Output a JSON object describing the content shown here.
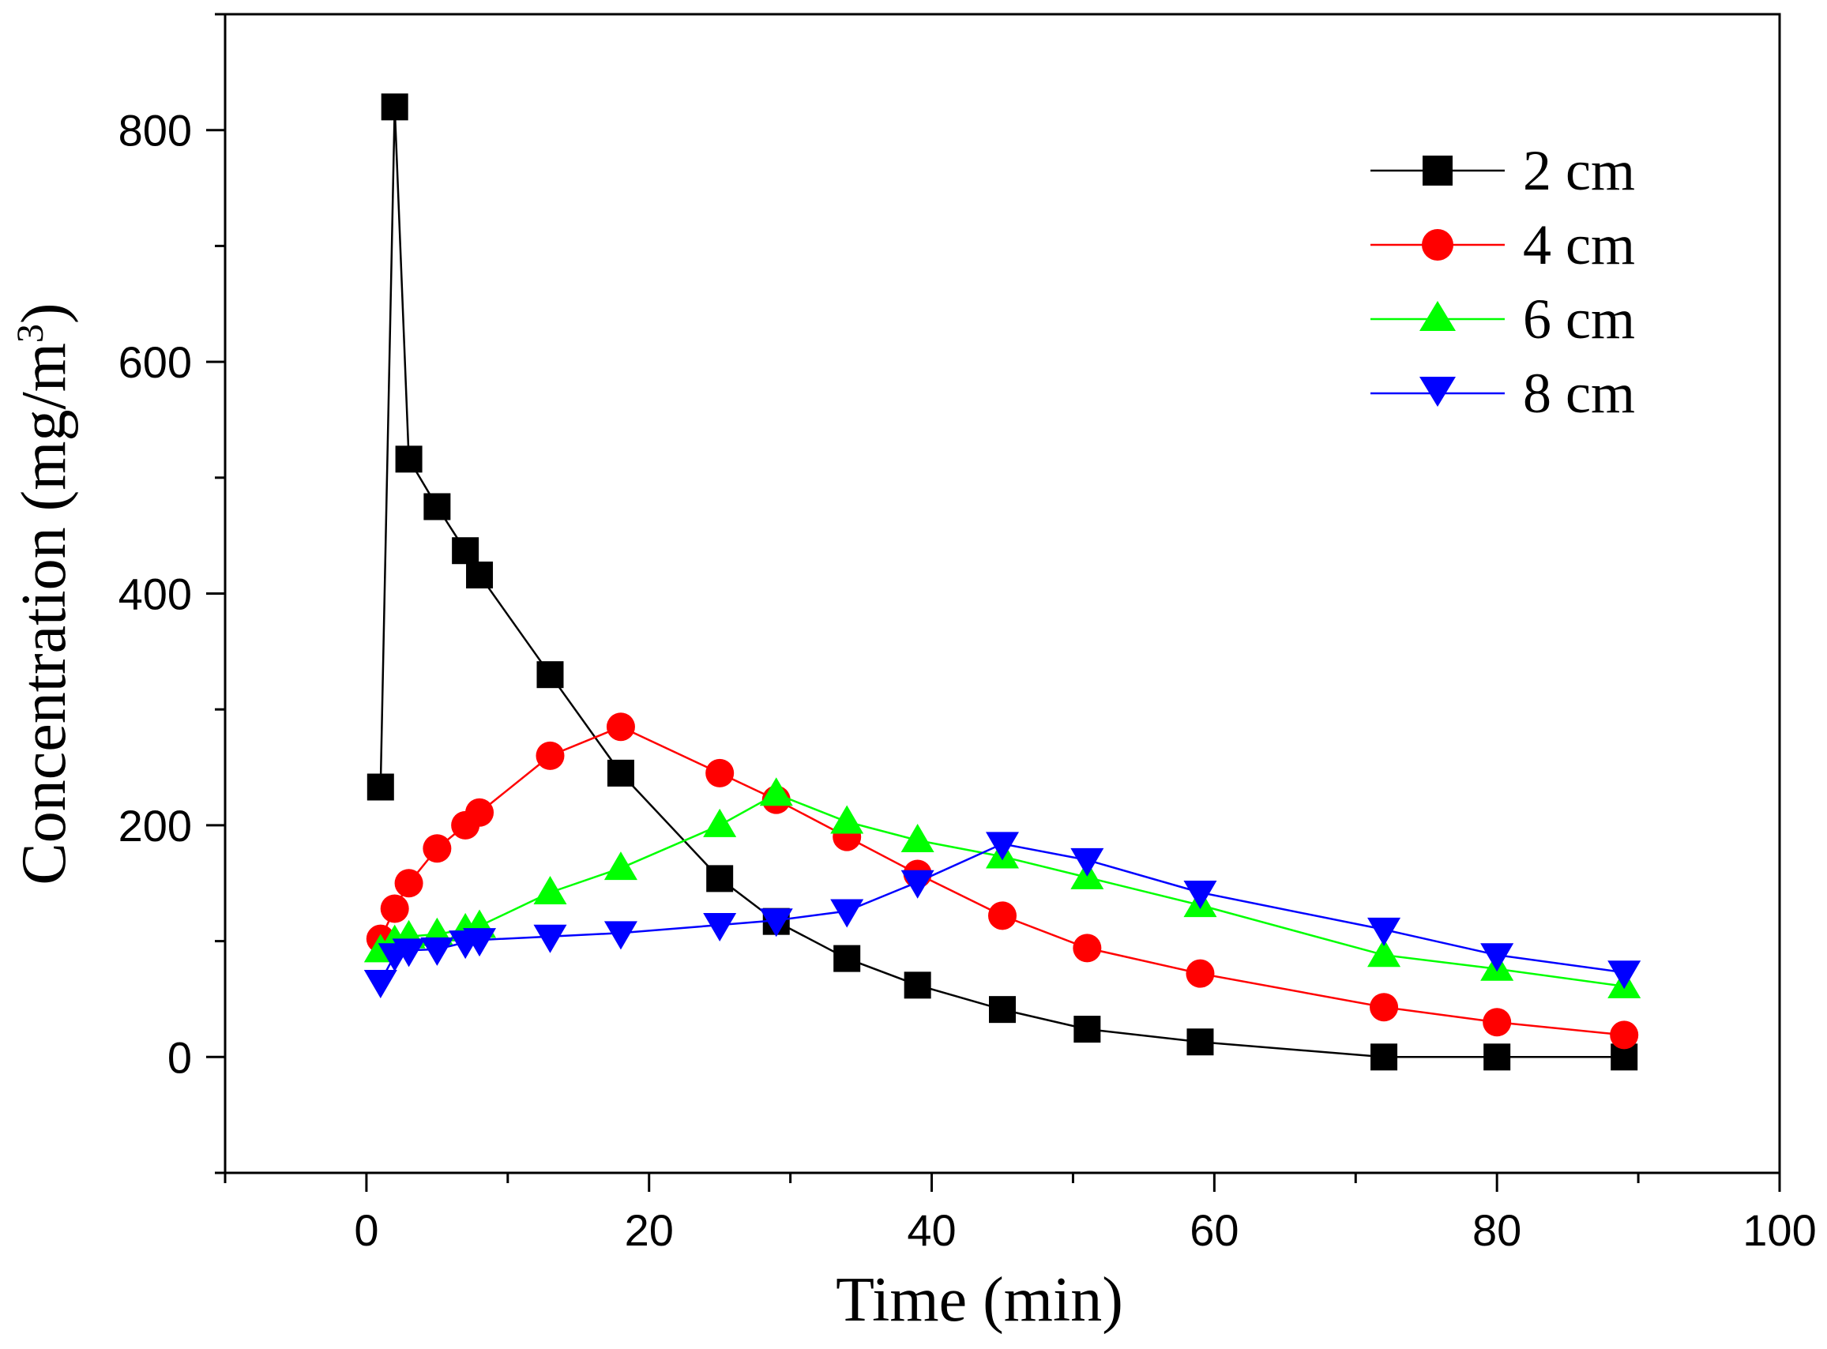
{
  "chart_data": {
    "type": "line",
    "title": "",
    "xlabel": "Time (min)",
    "ylabel": "Concentration (mg/m",
    "ylabel_superscript": "3",
    "ylabel_close": ")",
    "xlim": [
      -10,
      100
    ],
    "ylim": [
      -100,
      900
    ],
    "xticks": [
      0,
      20,
      40,
      60,
      80,
      100
    ],
    "xtick_labels": [
      "0",
      "20",
      "40",
      "60",
      "80",
      "100"
    ],
    "yticks": [
      0,
      200,
      400,
      600,
      800
    ],
    "ytick_labels": [
      "0",
      "200",
      "400",
      "600",
      "800"
    ],
    "grid": false,
    "legend_position": "top-right",
    "series": [
      {
        "name": "2 cm",
        "color": "#000000",
        "marker": "square",
        "x": [
          1,
          2,
          3,
          5,
          7,
          8,
          13,
          18,
          25,
          29,
          34,
          39,
          45,
          51,
          59,
          72,
          80,
          89
        ],
        "values": [
          233,
          820,
          516,
          475,
          437,
          416,
          330,
          245,
          154,
          117,
          85,
          62,
          41,
          24,
          13,
          0,
          0,
          0
        ]
      },
      {
        "name": "4 cm",
        "color": "#ff0000",
        "marker": "circle",
        "x": [
          1,
          2,
          3,
          5,
          7,
          8,
          13,
          18,
          25,
          29,
          34,
          39,
          45,
          51,
          59,
          72,
          80,
          89
        ],
        "values": [
          102,
          128,
          150,
          180,
          200,
          211,
          260,
          285,
          245,
          222,
          190,
          158,
          122,
          94,
          72,
          43,
          30,
          19
        ]
      },
      {
        "name": "6 cm",
        "color": "#00ff00",
        "marker": "triangle-up",
        "x": [
          1,
          2,
          3,
          5,
          7,
          8,
          13,
          18,
          25,
          29,
          34,
          39,
          45,
          51,
          59,
          72,
          80,
          89
        ],
        "values": [
          92,
          100,
          104,
          106,
          110,
          113,
          142,
          163,
          200,
          227,
          203,
          187,
          173,
          155,
          131,
          88,
          76,
          61
        ]
      },
      {
        "name": "8 cm",
        "color": "#0000ff",
        "marker": "triangle-down",
        "x": [
          1,
          2,
          3,
          5,
          7,
          8,
          13,
          18,
          25,
          29,
          34,
          39,
          45,
          51,
          59,
          72,
          80,
          89
        ],
        "values": [
          65,
          88,
          92,
          93,
          99,
          101,
          104,
          107,
          114,
          118,
          126,
          151,
          184,
          170,
          142,
          110,
          88,
          73
        ]
      }
    ]
  }
}
